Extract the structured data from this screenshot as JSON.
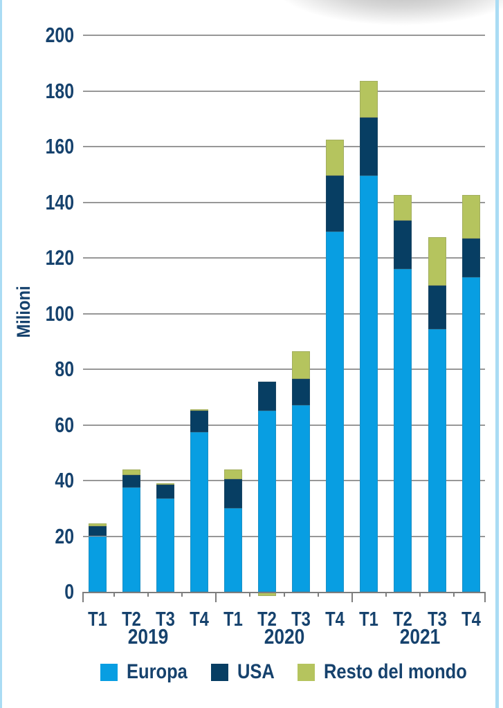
{
  "page": {
    "background": "#ffffff",
    "frame_border_color": "#aadcf4",
    "text_color": "#16426d",
    "gridline_color": "#979797"
  },
  "chart_data": {
    "type": "bar",
    "stacked": true,
    "title": "",
    "xlabel": "",
    "ylabel": "Milioni",
    "ylim": [
      0,
      200
    ],
    "ytick_step": 20,
    "ytick_labels": [
      "0",
      "20",
      "40",
      "60",
      "80",
      "100",
      "120",
      "140",
      "160",
      "180",
      "200"
    ],
    "grid": true,
    "legend_position": "bottom",
    "categories": [
      "T1",
      "T2",
      "T3",
      "T4",
      "T1",
      "T2",
      "T3",
      "T4",
      "T1",
      "T2",
      "T3",
      "T4"
    ],
    "year_groups": [
      {
        "label": "2019",
        "from": 0,
        "to": 3
      },
      {
        "label": "2020",
        "from": 4,
        "to": 7
      },
      {
        "label": "2021",
        "from": 8,
        "to": 11
      }
    ],
    "series": [
      {
        "name": "Europa",
        "color": "#089EE2",
        "values": [
          20,
          37.5,
          33.5,
          57.5,
          30,
          65,
          67,
          129.5,
          149.5,
          116,
          94.5,
          113
        ]
      },
      {
        "name": "USA",
        "color": "#073E63",
        "values": [
          3.5,
          4.5,
          5,
          7.5,
          10.5,
          10.5,
          9.5,
          20,
          21,
          17.5,
          15.5,
          14
        ]
      },
      {
        "name": "Resto del mondo",
        "color": "#B5C45E",
        "values": [
          1,
          2,
          0.5,
          0.5,
          3.5,
          -1.5,
          10,
          13,
          13,
          9,
          17.5,
          15.5
        ]
      }
    ]
  }
}
